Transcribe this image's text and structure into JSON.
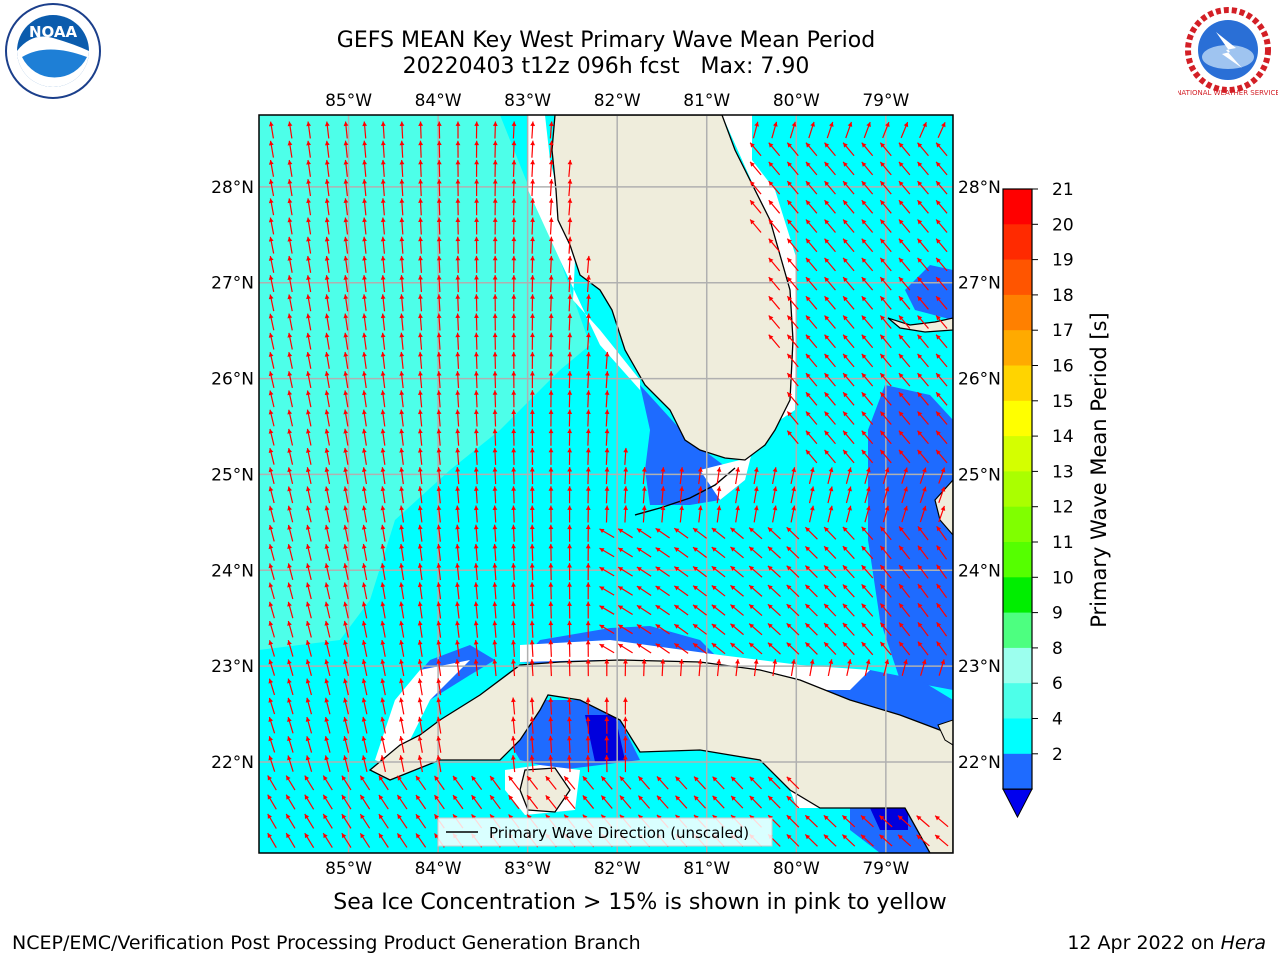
{
  "header": {
    "title_line1": "GEFS MEAN Key West Primary Wave Mean Period",
    "title_line2": "20220403 t12z 096h fcst   Max: 7.90"
  },
  "logos": {
    "left": "NOAA",
    "right": "NATIONAL WEATHER SERVICE"
  },
  "map": {
    "lon_range": [
      -86.0,
      -78.25
    ],
    "lat_range": [
      21.05,
      28.75
    ],
    "lon_ticks": [
      "85°W",
      "84°W",
      "83°W",
      "82°W",
      "81°W",
      "80°W",
      "79°W"
    ],
    "lat_ticks": [
      "28°N",
      "27°N",
      "26°N",
      "25°N",
      "24°N",
      "23°N",
      "22°N"
    ],
    "legend_label": "Primary Wave Direction (unscaled)",
    "colors": {
      "water_4_6": "#00ffff",
      "water_6_8": "#4dffe9",
      "water_2_4": "#1e6bff",
      "water_lt2": "#0000dd",
      "land": "#efeddc",
      "arrow": "#ff0000",
      "grid": "#b0b0b0"
    }
  },
  "colorbar": {
    "label": "Primary Wave Mean Period [s]",
    "ticks": [
      "21",
      "20",
      "19",
      "18",
      "17",
      "16",
      "15",
      "14",
      "13",
      "12",
      "11",
      "10",
      "9",
      "8",
      "6",
      "4",
      "2"
    ],
    "colors": [
      "#ff0000",
      "#ff2a00",
      "#ff5500",
      "#ff8000",
      "#ffaa00",
      "#ffd400",
      "#ffff00",
      "#d4ff00",
      "#aaff00",
      "#80ff00",
      "#55ff00",
      "#00ee00",
      "#4dff80",
      "#9cffee",
      "#4dffe9",
      "#00ffff",
      "#1e6bff"
    ],
    "underflow_color": "#0000ee"
  },
  "note": "Sea Ice Concentration > 15% is shown in pink to yellow",
  "footer": {
    "left": "NCEP/EMC/Verification Post Processing Product Generation Branch",
    "right_date": "12 Apr 2022 on ",
    "right_host": "Hera"
  }
}
